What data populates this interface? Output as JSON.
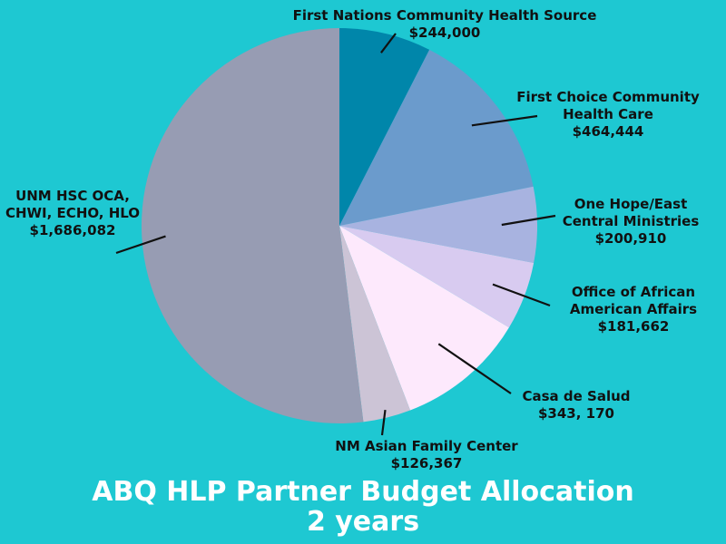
{
  "chart_data": {
    "type": "pie",
    "title": "ABQ HLP Partner Budget Allocation",
    "subtitle": "2 years",
    "slices": [
      {
        "name_lines": [
          "First Nations Community Health Source"
        ],
        "value_label": "$244,000",
        "value": 244000,
        "color": "#0086aa"
      },
      {
        "name_lines": [
          "First Choice Community",
          "Health Care"
        ],
        "value_label": "$464,444",
        "value": 464444,
        "color": "#6b9bcc"
      },
      {
        "name_lines": [
          "One Hope/East",
          "Central Ministries"
        ],
        "value_label": "$200,910",
        "value": 200910,
        "color": "#a8b3e0"
      },
      {
        "name_lines": [
          "Office of African",
          "American Affairs"
        ],
        "value_label": "$181,662",
        "value": 181662,
        "color": "#d8cbf0"
      },
      {
        "name_lines": [
          "Casa de Salud"
        ],
        "value_label": "$343, 170",
        "value": 343170,
        "color": "#fde9fc"
      },
      {
        "name_lines": [
          "NM Asian Family Center"
        ],
        "value_label": "$126,367",
        "value": 126367,
        "color": "#ccc4d6"
      },
      {
        "name_lines": [
          "UNM HSC OCA,",
          "CHWI, ECHO, HLO"
        ],
        "value_label": "$1,686,082",
        "value": 1686082,
        "color": "#979cb3"
      }
    ]
  }
}
